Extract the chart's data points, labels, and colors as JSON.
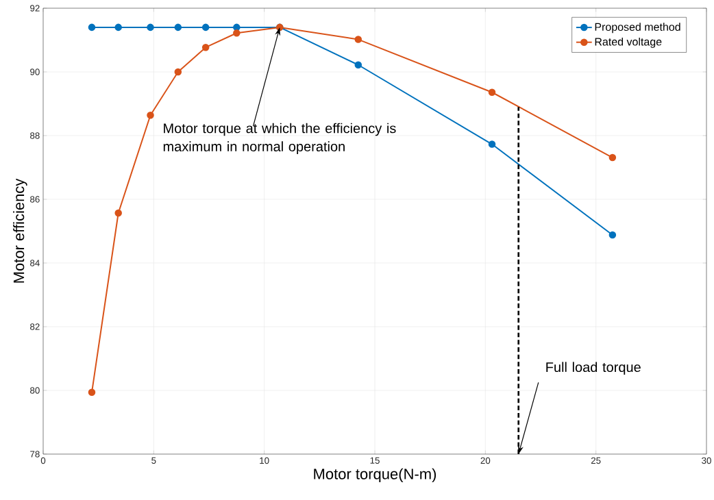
{
  "chart_data": {
    "type": "line",
    "xlabel": "Motor torque(N-m)",
    "ylabel": "Motor efficiency",
    "x": [
      2.2,
      3.4,
      4.85,
      6.1,
      7.35,
      8.75,
      10.7,
      14.25,
      20.3,
      25.75
    ],
    "series": [
      {
        "name": "Proposed method",
        "color": "#0072bd",
        "values": [
          91.4,
          91.4,
          91.4,
          91.4,
          91.4,
          91.4,
          91.4,
          90.22,
          87.73,
          84.88
        ]
      },
      {
        "name": "Rated voltage",
        "color": "#d95319",
        "values": [
          79.94,
          85.57,
          88.64,
          90.0,
          90.77,
          91.22,
          91.4,
          91.02,
          89.36,
          87.31
        ]
      },
      {
        "color": "#000000",
        "x": [
          21.5,
          21.5
        ],
        "values": [
          78,
          88.9
        ],
        "line_style": "dashed",
        "marker": "none"
      }
    ],
    "annotations": [
      {
        "text": "Motor torque at which the efficiency is maximum in normal operation",
        "x": 10.7,
        "y": 91.4
      },
      {
        "text": "Full load torque",
        "x": 21.5,
        "y": 78
      }
    ],
    "xlim": [
      0,
      30
    ],
    "ylim": [
      78,
      92
    ],
    "xticks": [
      0,
      5,
      10,
      15,
      20,
      25,
      30
    ],
    "yticks": [
      78,
      80,
      82,
      84,
      86,
      88,
      90,
      92
    ],
    "grid": true,
    "legend": "top right",
    "marker": "circle",
    "line_style": "solid"
  }
}
